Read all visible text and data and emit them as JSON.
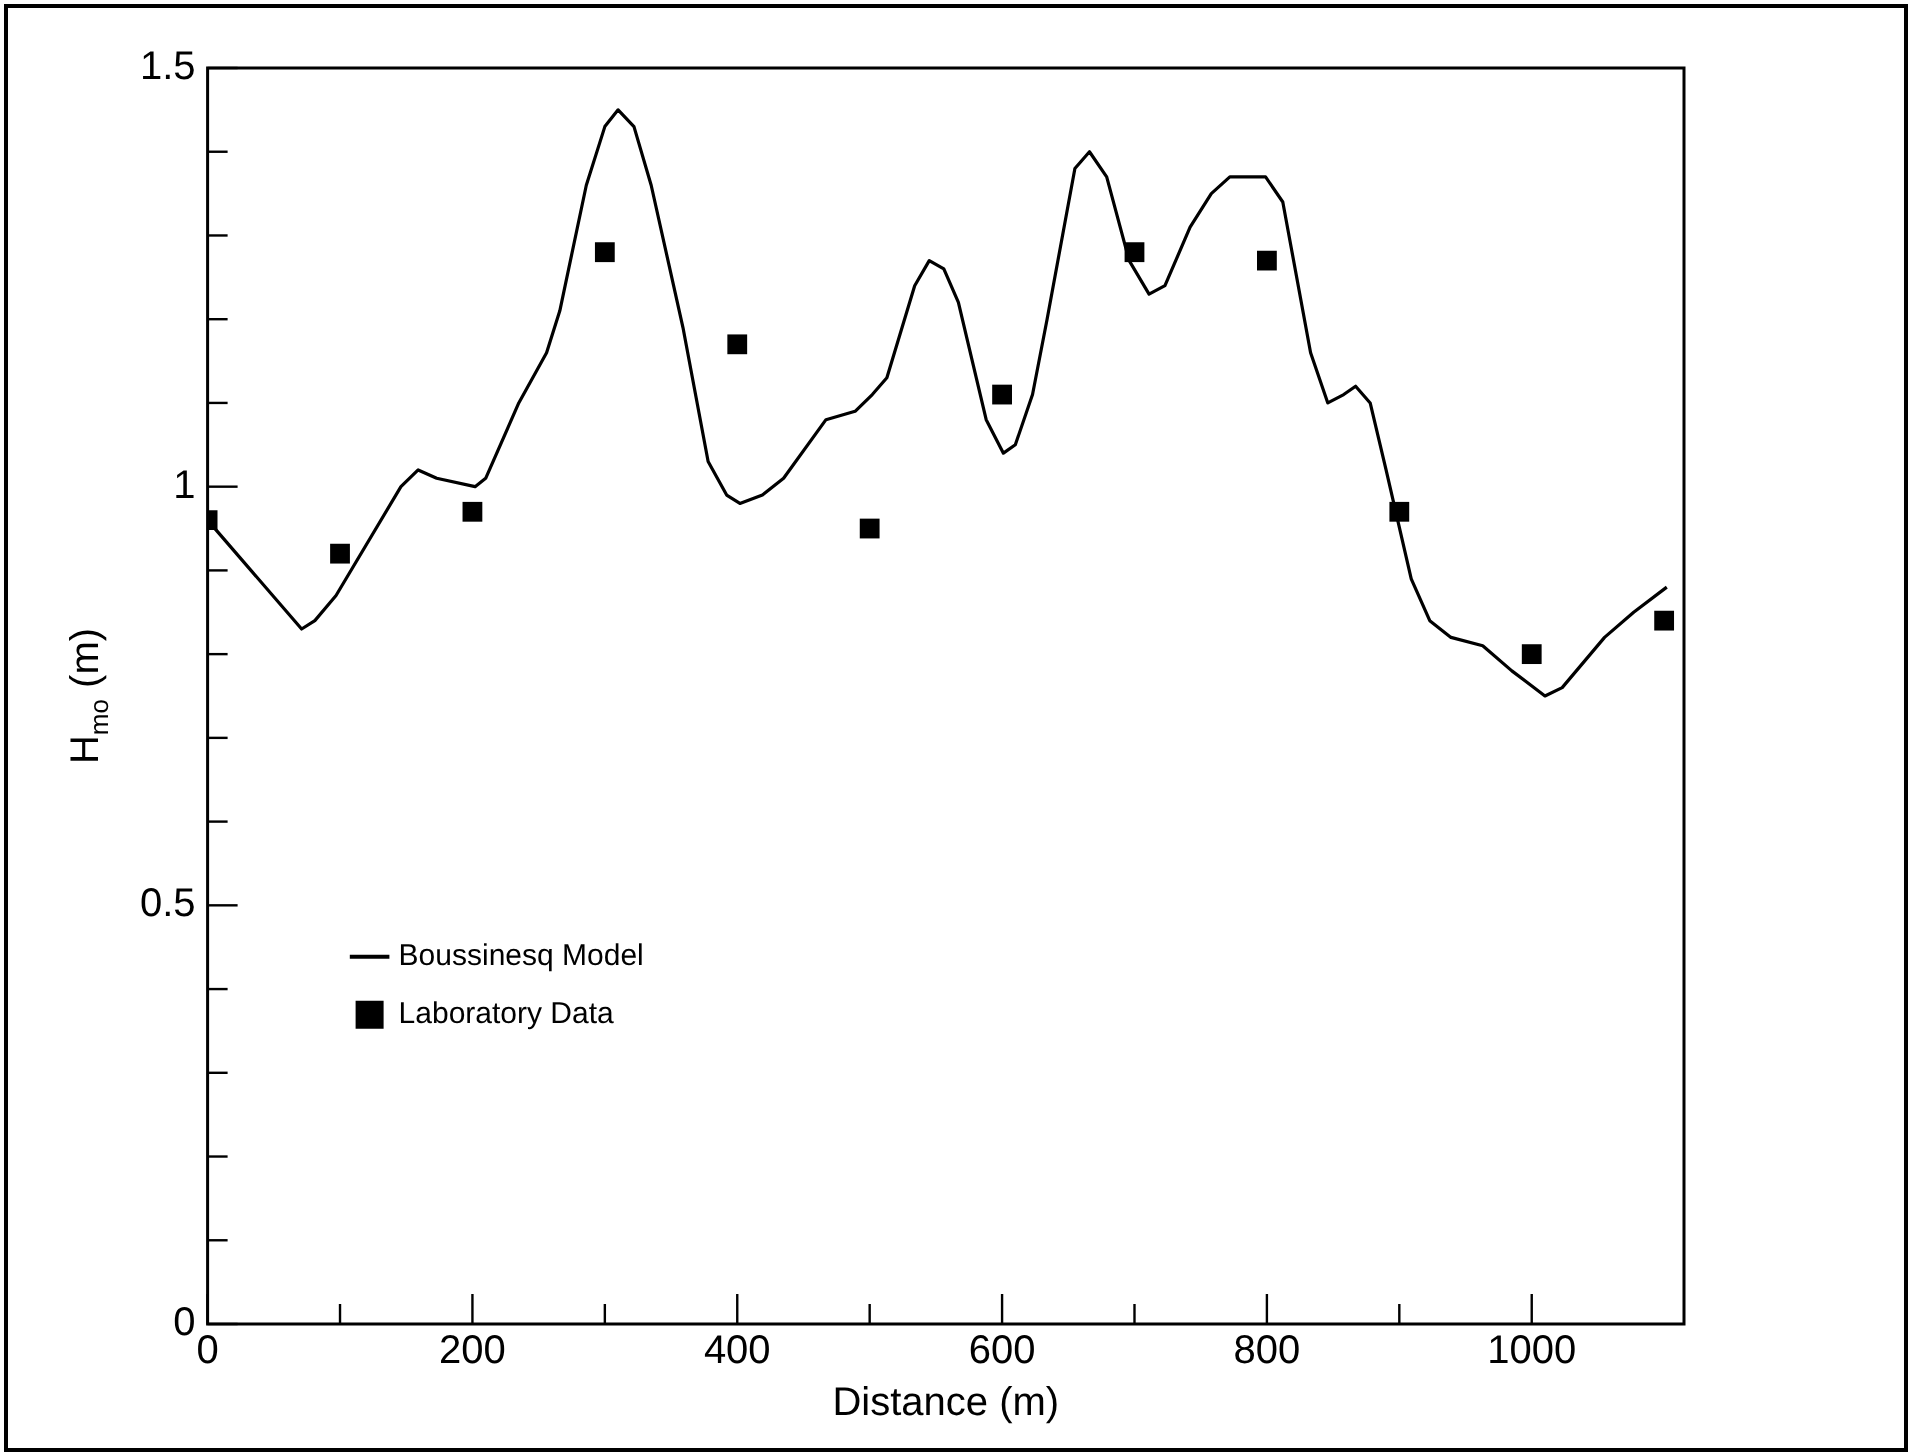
{
  "chart_data": {
    "type": "line",
    "xlabel": "Distance (m)",
    "ylabel": "H$_{mo}$ (m)",
    "xlim": [
      0,
      1115
    ],
    "ylim": [
      0,
      1.5
    ],
    "xticks": [
      0,
      {
        "value": 100,
        "label": null
      },
      200,
      {
        "value": 300,
        "label": null
      },
      400,
      {
        "value": 500,
        "label": null
      },
      600,
      {
        "value": 700,
        "label": null
      },
      800,
      {
        "value": 900,
        "label": null
      },
      1000
    ],
    "yticks": [
      0,
      {
        "value": 0.1,
        "label": null
      },
      {
        "value": 0.2,
        "label": null
      },
      {
        "value": 0.3,
        "label": null
      },
      {
        "value": 0.4,
        "label": null
      },
      0.5,
      {
        "value": 0.6,
        "label": null
      },
      {
        "value": 0.7,
        "label": null
      },
      {
        "value": 0.8,
        "label": null
      },
      {
        "value": 0.9,
        "label": null
      },
      1,
      {
        "value": 1.1,
        "label": null
      },
      {
        "value": 1.2,
        "label": null
      },
      {
        "value": 1.3,
        "label": null
      },
      {
        "value": 1.4,
        "label": null
      },
      1.5
    ],
    "grid": false,
    "legend": "bottom left",
    "series": [
      {
        "name": "Boussinesq Model",
        "color": "#000000",
        "marker": "none",
        "line_style": "solid",
        "x": [
          0,
          71,
          81,
          97,
          146,
          159,
          173,
          202,
          210,
          235,
          256,
          266,
          286,
          300,
          310,
          322,
          335,
          359,
          378,
          392,
          402,
          419,
          435,
          467,
          489,
          502,
          513,
          534,
          545,
          556,
          567,
          588,
          601,
          610,
          623,
          634,
          655,
          666,
          679,
          696,
          711,
          723,
          742,
          758,
          772,
          785,
          799,
          812,
          833,
          846,
          858,
          867,
          878,
          890,
          909,
          923,
          939,
          963,
          985,
          1010,
          1023,
          1055,
          1077,
          1102
        ],
        "values": [
          0.96,
          0.83,
          0.84,
          0.87,
          1.0,
          1.02,
          1.01,
          1.0,
          1.01,
          1.1,
          1.16,
          1.21,
          1.36,
          1.43,
          1.45,
          1.43,
          1.36,
          1.19,
          1.03,
          0.99,
          0.98,
          0.99,
          1.01,
          1.08,
          1.09,
          1.11,
          1.13,
          1.24,
          1.27,
          1.26,
          1.22,
          1.08,
          1.04,
          1.05,
          1.11,
          1.2,
          1.38,
          1.4,
          1.37,
          1.27,
          1.23,
          1.24,
          1.31,
          1.35,
          1.37,
          1.37,
          1.37,
          1.34,
          1.16,
          1.1,
          1.11,
          1.12,
          1.1,
          1.02,
          0.89,
          0.84,
          0.82,
          0.81,
          0.78,
          0.75,
          0.76,
          0.82,
          0.85,
          0.88
        ]
      },
      {
        "name": "Laboratory Data",
        "type": "scatter",
        "color": "#000000",
        "marker": "square",
        "x": [
          0,
          100,
          200,
          300,
          400,
          500,
          600,
          700,
          800,
          900,
          1000,
          1100
        ],
        "values": [
          0.96,
          0.92,
          0.97,
          1.28,
          1.17,
          0.95,
          1.11,
          1.28,
          1.27,
          0.97,
          0.8,
          0.84
        ]
      }
    ]
  }
}
